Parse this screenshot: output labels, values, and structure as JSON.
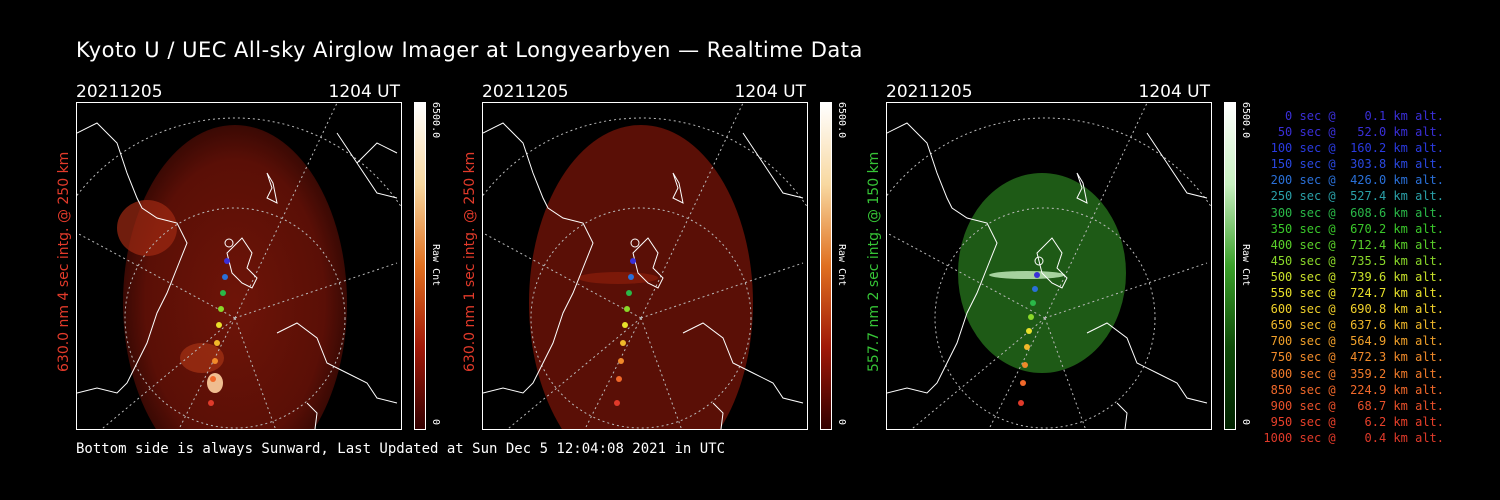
{
  "title": "Kyoto U / UEC All-sky Airglow Imager at Longyearbyen — Realtime Data",
  "footer": "Bottom side is always Sunward, Last Updated at Sun Dec  5 12:04:08 2021 in UTC",
  "panels": [
    {
      "date": "20211205",
      "time": "1204 UT",
      "ylabel": "630.0 nm  4 sec intg. @ 250 km",
      "label_color": "#e23a2a",
      "tint": "red",
      "colorbar_max": "6500.0",
      "colorbar_min": "0",
      "colorbar_unit": "Raw Cnt"
    },
    {
      "date": "20211205",
      "time": "1204 UT",
      "ylabel": "630.0 nm  1 sec intg. @ 250 km",
      "label_color": "#e23a2a",
      "tint": "red",
      "colorbar_max": "6500.0",
      "colorbar_min": "0",
      "colorbar_unit": "Raw Cnt"
    },
    {
      "date": "20211205",
      "time": "1204 UT",
      "ylabel": "557.7 nm  2 sec intg. @ 150 km",
      "label_color": "#36c436",
      "tint": "green",
      "colorbar_max": "6500.0",
      "colorbar_min": "0",
      "colorbar_unit": "Raw Cnt"
    }
  ],
  "legend": [
    {
      "text": "   0 sec @    0.1 km alt.",
      "color": "#3a2fd8"
    },
    {
      "text": "  50 sec @   52.0 km alt.",
      "color": "#3a2fd8"
    },
    {
      "text": " 100 sec @  160.2 km alt.",
      "color": "#2a3ae0"
    },
    {
      "text": " 150 sec @  303.8 km alt.",
      "color": "#2a48e0"
    },
    {
      "text": " 200 sec @  426.0 km alt.",
      "color": "#2a70d8"
    },
    {
      "text": " 250 sec @  527.4 km alt.",
      "color": "#2aa0a8"
    },
    {
      "text": " 300 sec @  608.6 km alt.",
      "color": "#2ab848"
    },
    {
      "text": " 350 sec @  670.2 km alt.",
      "color": "#3ac82a"
    },
    {
      "text": " 400 sec @  712.4 km alt.",
      "color": "#5ad02a"
    },
    {
      "text": " 450 sec @  735.5 km alt.",
      "color": "#8ad82a"
    },
    {
      "text": " 500 sec @  739.6 km alt.",
      "color": "#c8e02a"
    },
    {
      "text": " 550 sec @  724.7 km alt.",
      "color": "#e8e02a"
    },
    {
      "text": " 600 sec @  690.8 km alt.",
      "color": "#f0d02a"
    },
    {
      "text": " 650 sec @  637.6 km alt.",
      "color": "#f0b82a"
    },
    {
      "text": " 700 sec @  564.9 km alt.",
      "color": "#f0a02a"
    },
    {
      "text": " 750 sec @  472.3 km alt.",
      "color": "#f08a2a"
    },
    {
      "text": " 800 sec @  359.2 km alt.",
      "color": "#f07a2a"
    },
    {
      "text": " 850 sec @  224.9 km alt.",
      "color": "#f0682a"
    },
    {
      "text": " 900 sec @   68.7 km alt.",
      "color": "#e8502a"
    },
    {
      "text": " 950 sec @    6.2 km alt.",
      "color": "#e8402a"
    },
    {
      "text": "1000 sec @    0.4 km alt.",
      "color": "#e03a2a"
    }
  ]
}
